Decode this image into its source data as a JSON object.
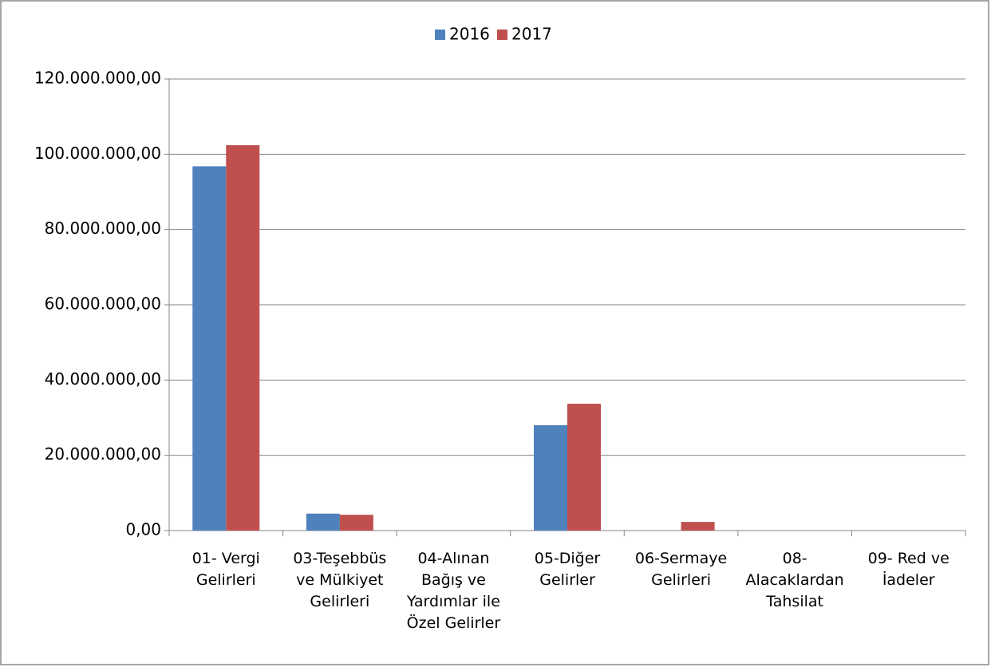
{
  "chart_data": {
    "type": "bar",
    "categories": [
      "01- Vergi Gelirleri",
      "03-Teşebbüs ve Mülkiyet Gelirleri",
      "04-Alınan Bağış ve Yardımlar ile Özel Gelirler",
      "05-Diğer Gelirler",
      "06-Sermaye Gelirleri",
      "08- Alacaklardan Tahsilat",
      "09- Red ve İadeler"
    ],
    "series": [
      {
        "name": "2016",
        "color": "#4f81bd",
        "values": [
          96800000,
          4500000,
          0,
          28000000,
          0,
          0,
          0
        ]
      },
      {
        "name": "2017",
        "color": "#c0504d",
        "values": [
          102400000,
          4200000,
          0,
          33700000,
          2300000,
          0,
          0
        ]
      }
    ],
    "ylim": [
      0,
      120000000
    ],
    "yticks": [
      {
        "value": 0,
        "label": "0,00"
      },
      {
        "value": 20000000,
        "label": "20.000.000,00"
      },
      {
        "value": 40000000,
        "label": "40.000.000,00"
      },
      {
        "value": 60000000,
        "label": "60.000.000,00"
      },
      {
        "value": 80000000,
        "label": "80.000.000,00"
      },
      {
        "value": 100000000,
        "label": "100.000.000,00"
      },
      {
        "value": 120000000,
        "label": "120.000.000,00"
      }
    ],
    "grid": true,
    "legend": "top"
  }
}
